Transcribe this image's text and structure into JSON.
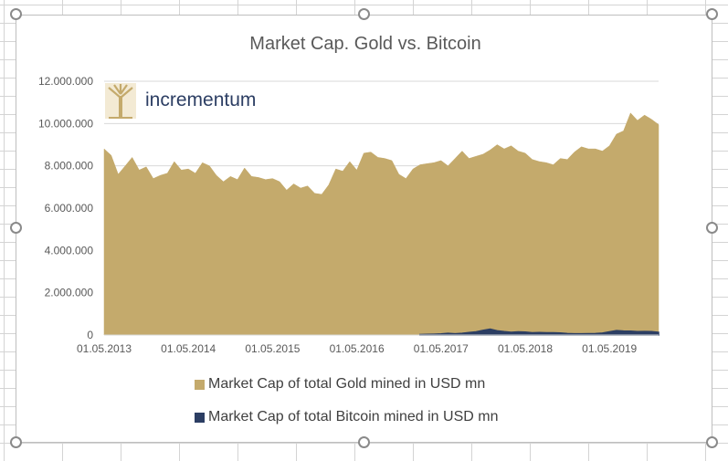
{
  "colors": {
    "gold": "#c4aa6c",
    "bitcoin": "#2c3e63",
    "gridline": "#d9d9d9",
    "text": "#595959",
    "logo_text": "#2c3e63"
  },
  "logo": {
    "text": "incrementum",
    "icon": "tree-icon"
  },
  "legend": {
    "gold_label": "Market Cap of total Gold mined in USD mn",
    "bitcoin_label": "Market Cap of total Bitcoin mined in USD mn"
  },
  "chart_data": {
    "type": "area",
    "title": "Market Cap. Gold vs. Bitcoin",
    "xlabel": "",
    "ylabel": "",
    "ylim": [
      0,
      12000000
    ],
    "yticks": [
      "0",
      "2.000.000",
      "4.000.000",
      "6.000.000",
      "8.000.000",
      "10.000.000",
      "12.000.000"
    ],
    "ytick_values": [
      0,
      2000000,
      4000000,
      6000000,
      8000000,
      10000000,
      12000000
    ],
    "xticks": [
      "01.05.2013",
      "01.05.2014",
      "01.05.2015",
      "01.05.2016",
      "01.05.2017",
      "01.05.2018",
      "01.05.2019"
    ],
    "x_start": "2013-05",
    "x_end": "2019-12",
    "grid": true,
    "legend_position": "bottom",
    "series": [
      {
        "name": "Market Cap of total Gold mined in USD mn",
        "x": [
          "2013-05",
          "2013-06",
          "2013-07",
          "2013-08",
          "2013-09",
          "2013-10",
          "2013-11",
          "2013-12",
          "2014-01",
          "2014-02",
          "2014-03",
          "2014-04",
          "2014-05",
          "2014-06",
          "2014-07",
          "2014-08",
          "2014-09",
          "2014-10",
          "2014-11",
          "2014-12",
          "2015-01",
          "2015-02",
          "2015-03",
          "2015-04",
          "2015-05",
          "2015-06",
          "2015-07",
          "2015-08",
          "2015-09",
          "2015-10",
          "2015-11",
          "2015-12",
          "2016-01",
          "2016-02",
          "2016-03",
          "2016-04",
          "2016-05",
          "2016-06",
          "2016-07",
          "2016-08",
          "2016-09",
          "2016-10",
          "2016-11",
          "2016-12",
          "2017-01",
          "2017-02",
          "2017-03",
          "2017-04",
          "2017-05",
          "2017-06",
          "2017-07",
          "2017-08",
          "2017-09",
          "2017-10",
          "2017-11",
          "2017-12",
          "2018-01",
          "2018-02",
          "2018-03",
          "2018-04",
          "2018-05",
          "2018-06",
          "2018-07",
          "2018-08",
          "2018-09",
          "2018-10",
          "2018-11",
          "2018-12",
          "2019-01",
          "2019-02",
          "2019-03",
          "2019-04",
          "2019-05",
          "2019-06",
          "2019-07",
          "2019-08",
          "2019-09",
          "2019-10",
          "2019-11",
          "2019-12"
        ],
        "values": [
          8800000,
          8500000,
          7600000,
          8000000,
          8400000,
          7800000,
          7950000,
          7400000,
          7550000,
          7650000,
          8200000,
          7800000,
          7850000,
          7650000,
          8150000,
          8000000,
          7550000,
          7250000,
          7500000,
          7350000,
          7900000,
          7500000,
          7450000,
          7350000,
          7400000,
          7250000,
          6850000,
          7150000,
          6950000,
          7050000,
          6700000,
          6650000,
          7100000,
          7850000,
          7750000,
          8200000,
          7800000,
          8600000,
          8650000,
          8400000,
          8350000,
          8250000,
          7600000,
          7400000,
          7850000,
          8050000,
          8100000,
          8150000,
          8250000,
          8000000,
          8350000,
          8700000,
          8350000,
          8450000,
          8550000,
          8750000,
          9000000,
          8800000,
          8950000,
          8700000,
          8600000,
          8300000,
          8200000,
          8150000,
          8050000,
          8350000,
          8300000,
          8650000,
          8900000,
          8800000,
          8800000,
          8700000,
          8950000,
          9500000,
          9650000,
          10500000,
          10150000,
          10400000,
          10200000,
          9950000
        ]
      },
      {
        "name": "Market Cap of total Bitcoin mined in USD mn",
        "x": [
          "2017-02",
          "2017-03",
          "2017-04",
          "2017-05",
          "2017-06",
          "2017-07",
          "2017-08",
          "2017-09",
          "2017-10",
          "2017-11",
          "2017-12",
          "2018-01",
          "2018-02",
          "2018-03",
          "2018-04",
          "2018-05",
          "2018-06",
          "2018-07",
          "2018-08",
          "2018-09",
          "2018-10",
          "2018-11",
          "2018-12",
          "2019-01",
          "2019-02",
          "2019-03",
          "2019-04",
          "2019-05",
          "2019-06",
          "2019-07",
          "2019-08",
          "2019-09",
          "2019-10",
          "2019-11",
          "2019-12"
        ],
        "values": [
          20000,
          30000,
          40000,
          50000,
          80000,
          60000,
          80000,
          120000,
          150000,
          220000,
          280000,
          200000,
          160000,
          130000,
          150000,
          140000,
          110000,
          120000,
          110000,
          110000,
          100000,
          70000,
          60000,
          60000,
          65000,
          70000,
          90000,
          150000,
          210000,
          190000,
          180000,
          160000,
          170000,
          160000,
          130000
        ]
      }
    ]
  }
}
